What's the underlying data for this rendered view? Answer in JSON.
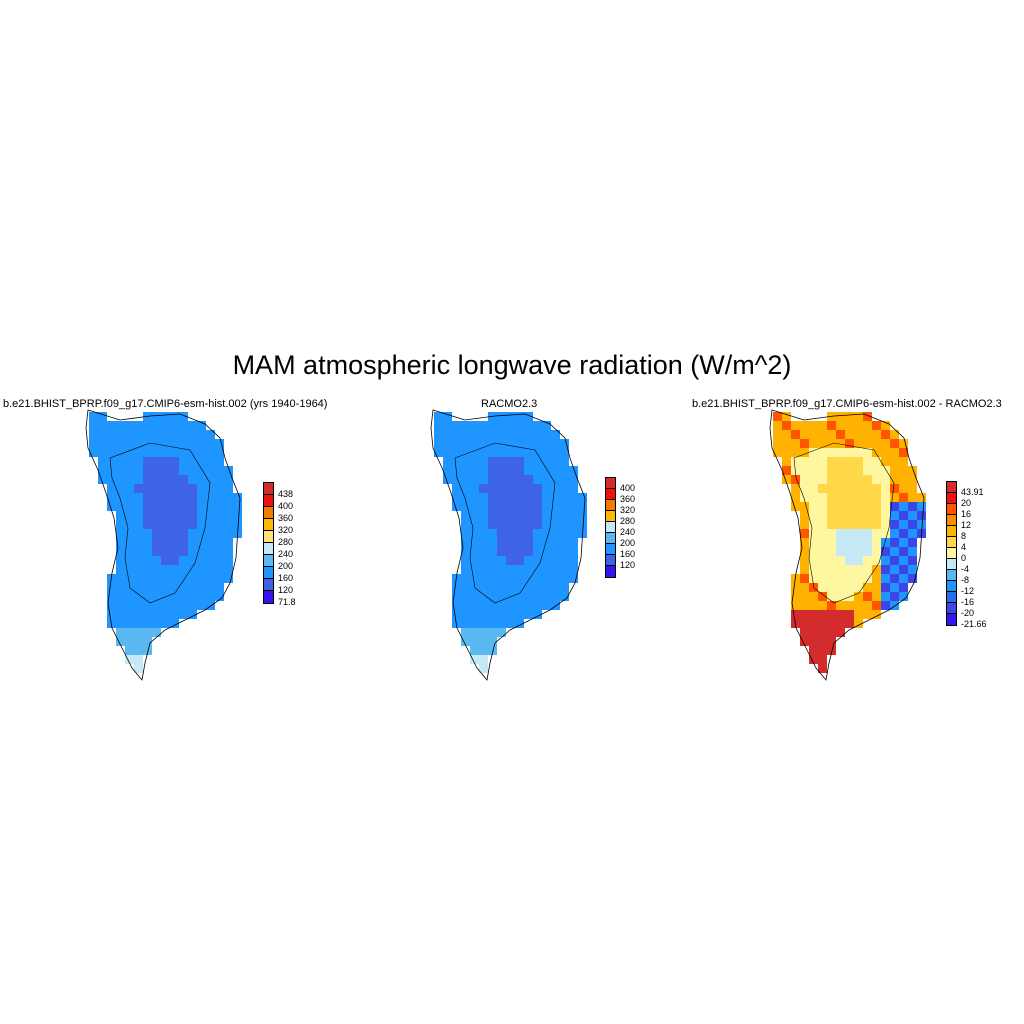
{
  "figure": {
    "title": "MAM atmospheric longwave radiation (W/m^2)"
  },
  "panels": [
    {
      "id": "model",
      "title": "b.e21.BHIST_BPRP.f09_g17.CMIP6-esm-hist.002 (yrs 1940-1964)",
      "colorbar_labels": [
        "438",
        "400",
        "360",
        "320",
        "280",
        "240",
        "200",
        "160",
        "120",
        "71.8"
      ],
      "colorbar_colors": [
        "#d42c2c",
        "#ee1111",
        "#f47a00",
        "#ffb900",
        "#ffe07a",
        "#c6e9f8",
        "#5ab9f2",
        "#1f95ff",
        "#3e63e6",
        "#3316ee"
      ]
    },
    {
      "id": "racmo",
      "title": "RACMO2.3",
      "colorbar_labels": [
        "400",
        "360",
        "320",
        "280",
        "240",
        "200",
        "160",
        "120"
      ],
      "colorbar_colors": [
        "#d42c2c",
        "#ee1111",
        "#f47a00",
        "#ffb900",
        "#c6e9f8",
        "#5ab9f2",
        "#1f95ff",
        "#3e63e6",
        "#3316ee"
      ]
    },
    {
      "id": "difference",
      "title": "b.e21.BHIST_BPRP.f09_g17.CMIP6-esm-hist.002 - RACMO2.3",
      "colorbar_labels": [
        "43.91",
        "20",
        "16",
        "12",
        "8",
        "4",
        "0",
        "-4",
        "-8",
        "-12",
        "-16",
        "-20",
        "-21.66"
      ],
      "colorbar_colors": [
        "#d42c2c",
        "#ee1111",
        "#ff5500",
        "#ff8c00",
        "#ffb300",
        "#ffd84a",
        "#fff6a0",
        "#c6e9f8",
        "#5ab9f2",
        "#1f95ff",
        "#2a6ef0",
        "#3e45e6",
        "#3316ee"
      ]
    }
  ]
}
